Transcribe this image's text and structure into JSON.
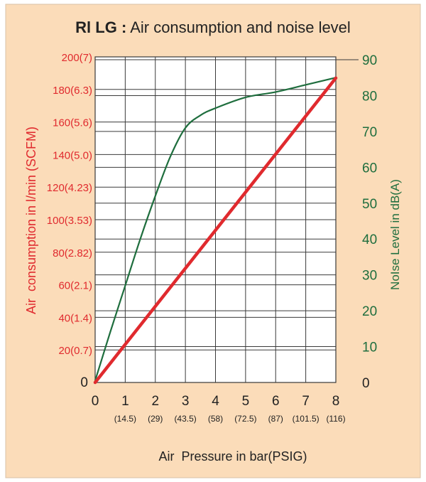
{
  "colors": {
    "background": "#fbdcb9",
    "air": "#e02a2e",
    "noise": "#1f6e3e",
    "grid": "#3a3a3a",
    "text": "#222222"
  },
  "chart_data": {
    "type": "line",
    "title_bold": "Rl LG :",
    "title_rest": "Air consumption and noise level",
    "xlabel": "Air  Pressure in bar(PSIG)",
    "ylabel_left": "Air  consumption in l/min (SCFM)",
    "ylabel_right": "NoIse Level in dB(A)",
    "xlim": [
      0,
      8
    ],
    "ylim_left": [
      0,
      200
    ],
    "ylim_right": [
      0,
      90
    ],
    "grid": true,
    "x_ticks": [
      "0",
      "1",
      "2",
      "3",
      "4",
      "5",
      "6",
      "7",
      "8"
    ],
    "x_subticks": [
      "",
      "(14.5)",
      "(29)",
      "(43.5)",
      "(58)",
      "(72.5)",
      "(87)",
      "(101.5)",
      "(116)"
    ],
    "left_ticks": [
      {
        "v": 0,
        "label": "0"
      },
      {
        "v": 20,
        "label": "20(0.7)"
      },
      {
        "v": 40,
        "label": "40(1.4)"
      },
      {
        "v": 60,
        "label": "60(2.1)"
      },
      {
        "v": 80,
        "label": "80(2.82)"
      },
      {
        "v": 100,
        "label": "100(3.53)"
      },
      {
        "v": 120,
        "label": "120(4.23)"
      },
      {
        "v": 140,
        "label": "140(5.0)"
      },
      {
        "v": 160,
        "label": "160(5.6)"
      },
      {
        "v": 180,
        "label": "180(6.3)"
      },
      {
        "v": 200,
        "label": "200(7)"
      }
    ],
    "right_ticks": [
      {
        "v": 0,
        "label": "0"
      },
      {
        "v": 10,
        "label": "10"
      },
      {
        "v": 20,
        "label": "20"
      },
      {
        "v": 30,
        "label": "30"
      },
      {
        "v": 40,
        "label": "40"
      },
      {
        "v": 50,
        "label": "50"
      },
      {
        "v": 60,
        "label": "60"
      },
      {
        "v": 70,
        "label": "70"
      },
      {
        "v": 80,
        "label": "80"
      },
      {
        "v": 90,
        "label": "90"
      }
    ],
    "series": [
      {
        "axis": "left",
        "x": [
          0,
          8
        ],
        "y": [
          0,
          187
        ]
      },
      {
        "axis": "right",
        "x": [
          0,
          0.5,
          1,
          1.5,
          2,
          2.5,
          3,
          3.5,
          4,
          5,
          6,
          7,
          8
        ],
        "y": [
          0.5,
          14,
          27,
          40,
          52,
          63,
          71,
          74.5,
          76.5,
          79.5,
          81,
          83,
          85
        ]
      }
    ]
  }
}
